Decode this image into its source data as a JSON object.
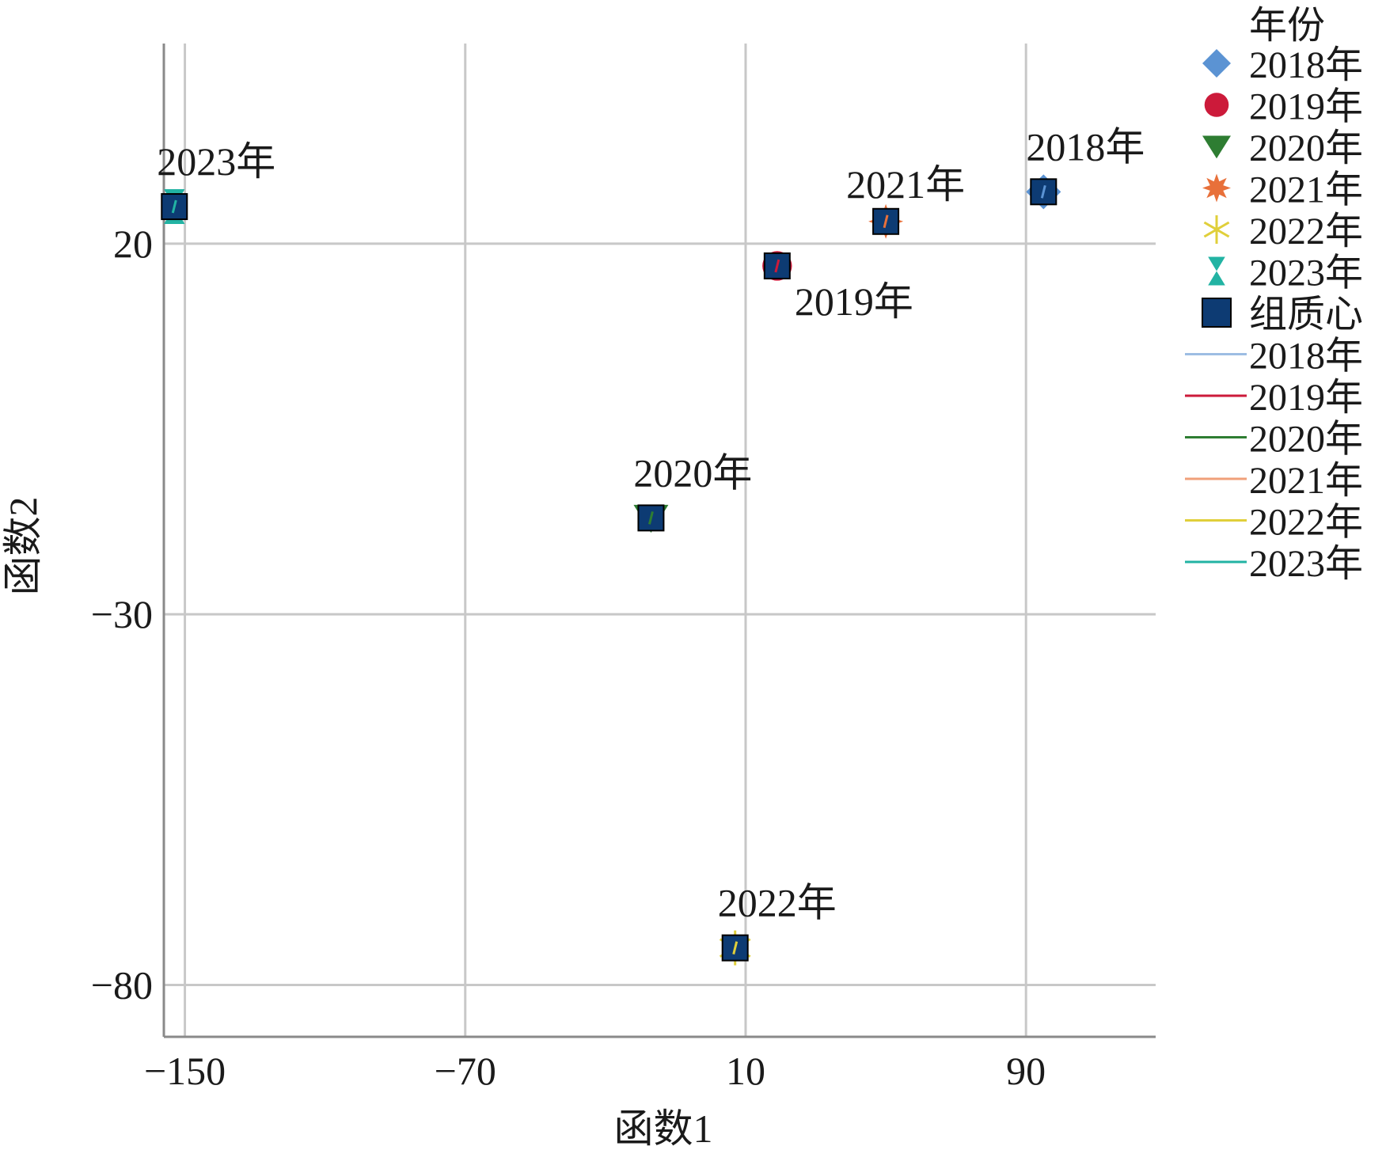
{
  "chart_data": {
    "type": "scatter",
    "xlabel": "函数1",
    "ylabel": "函数2",
    "xlim": [
      -156,
      127
    ],
    "ylim": [
      -87,
      47
    ],
    "xticks": [
      -150,
      -70,
      10,
      90
    ],
    "xtick_labels": [
      "−150",
      "−70",
      "10",
      "90"
    ],
    "yticks": [
      20,
      -30,
      -80
    ],
    "ytick_labels": [
      "20",
      "−30",
      "−80"
    ],
    "grid": true,
    "legend_position": "right",
    "legend_title": "年份",
    "legend_marker_items": [
      {
        "label": "2018年",
        "marker": "diamond",
        "color": "#5b93d3"
      },
      {
        "label": "2019年",
        "marker": "circle",
        "color": "#cc1a3a"
      },
      {
        "label": "2020年",
        "marker": "triangle-down",
        "color": "#2e7d32"
      },
      {
        "label": "2021年",
        "marker": "star-burst",
        "color": "#e8703a"
      },
      {
        "label": "2022年",
        "marker": "asterisk",
        "color": "#e0cf3a"
      },
      {
        "label": "2023年",
        "marker": "hourglass",
        "color": "#22b3a3"
      },
      {
        "label": "组质心",
        "marker": "square",
        "color": "#0d3b73"
      }
    ],
    "legend_line_items": [
      {
        "label": "2018年",
        "color": "#9dbde3"
      },
      {
        "label": "2019年",
        "color": "#cc1a3a"
      },
      {
        "label": "2020年",
        "color": "#2e7d32"
      },
      {
        "label": "2021年",
        "color": "#f0a07a"
      },
      {
        "label": "2022年",
        "color": "#e0cf3a"
      },
      {
        "label": "2023年",
        "color": "#22b3a3"
      }
    ],
    "centroid_color": "#0d3b73",
    "points": [
      {
        "year": "2018年",
        "x": 95,
        "y": 27,
        "color": "#5b93d3",
        "marker": "diamond",
        "label_anchor": "above-right"
      },
      {
        "year": "2019年",
        "x": 19,
        "y": 17,
        "color": "#cc1a3a",
        "marker": "circle",
        "label_anchor": "below-right"
      },
      {
        "year": "2020年",
        "x": -17,
        "y": -17,
        "color": "#2e7d32",
        "marker": "triangle-down",
        "label_anchor": "above-right"
      },
      {
        "year": "2021年",
        "x": 50,
        "y": 23,
        "color": "#e8703a",
        "marker": "star-burst",
        "label_anchor": "above"
      },
      {
        "year": "2022年",
        "x": 7,
        "y": -75,
        "color": "#e0cf3a",
        "marker": "asterisk",
        "label_anchor": "above-right"
      },
      {
        "year": "2023年",
        "x": -153,
        "y": 25,
        "color": "#22b3a3",
        "marker": "hourglass",
        "label_anchor": "above-right"
      }
    ]
  }
}
